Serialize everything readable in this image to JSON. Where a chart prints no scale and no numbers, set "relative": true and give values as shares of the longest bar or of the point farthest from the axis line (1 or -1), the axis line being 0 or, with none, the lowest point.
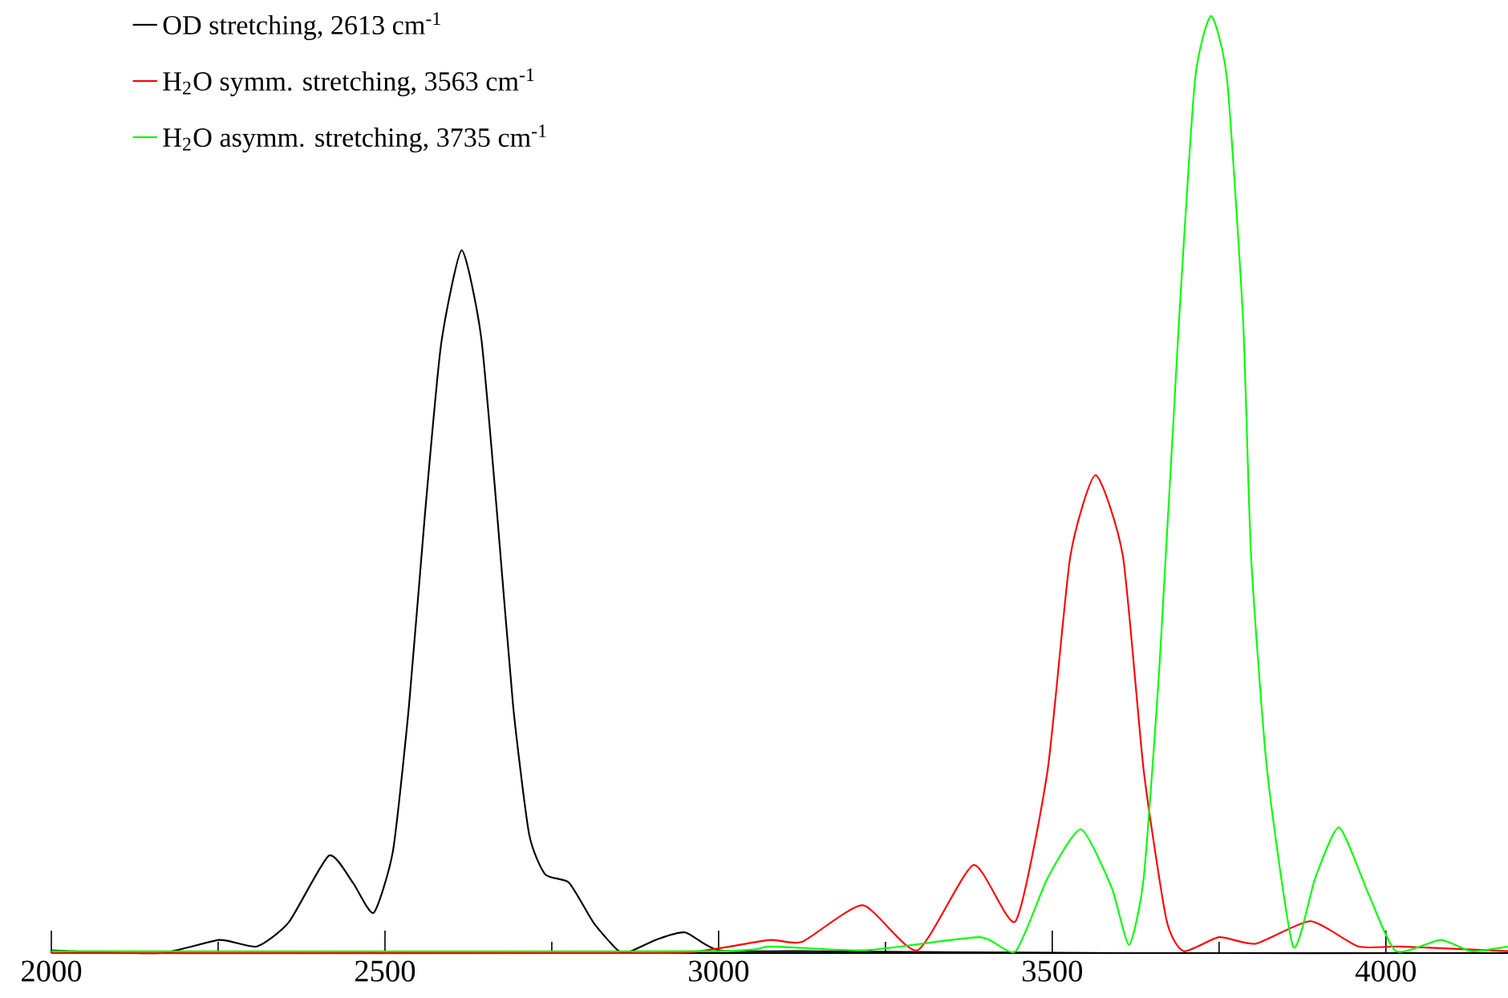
{
  "chart_data": {
    "type": "line",
    "relative": true,
    "legend": "top left",
    "xlim": [
      2000,
      4183
    ],
    "xticks": [
      2000,
      2500,
      3000,
      3500,
      4000,
      {
        "value": 2250,
        "label": null
      },
      {
        "value": 2750,
        "label": null
      },
      {
        "value": 3250,
        "label": null
      },
      {
        "value": 3750,
        "label": null
      }
    ],
    "series": [
      {
        "name": "OD stretching, 2613 cm$^{-1}$",
        "color": "#000000",
        "x": [
          2000,
          2163,
          2252,
          2308,
          2356,
          2416,
          2452,
          2483,
          2512,
          2536,
          2560,
          2584,
          2615,
          2644,
          2668,
          2692,
          2716,
          2740,
          2776,
          2813,
          2849,
          2868,
          2909,
          2950,
          3000,
          3125,
          3606,
          4183
        ],
        "values": [
          0.003,
          0,
          0.014,
          0.007,
          0.033,
          0.104,
          0.075,
          0.043,
          0.109,
          0.264,
          0.469,
          0.649,
          0.75,
          0.658,
          0.469,
          0.264,
          0.127,
          0.084,
          0.075,
          0.032,
          0.003,
          0.002,
          0.015,
          0.022,
          0.003,
          0.002,
          0,
          0
        ]
      },
      {
        "name": "H$_{2}$O symm. stretching, 3563 cm$^{-1}$",
        "color": "#ff0000",
        "x": [
          2000,
          2885,
          2981,
          3077,
          3125,
          3216,
          3298,
          3382,
          3445,
          3493,
          3527,
          3565,
          3606,
          3637,
          3671,
          3697,
          3750,
          3805,
          3887,
          3959,
          4022,
          4183
        ],
        "values": [
          0,
          0,
          0.003,
          0.014,
          0.012,
          0.051,
          0.003,
          0.094,
          0.034,
          0.195,
          0.423,
          0.51,
          0.423,
          0.195,
          0.036,
          0.002,
          0.017,
          0.01,
          0.034,
          0.007,
          0.007,
          0.002
        ]
      },
      {
        "name": "H$_{2}$O asymm. stretching, 3735 cm$^{-1}$",
        "color": "#00ff00",
        "x": [
          2000,
          2981,
          3077,
          3221,
          3390,
          3445,
          3493,
          3543,
          3589,
          3615,
          3637,
          3661,
          3690,
          3714,
          3738,
          3762,
          3786,
          3798,
          3822,
          3861,
          3894,
          3930,
          3974,
          4015,
          4082,
          4128,
          4183
        ],
        "values": [
          0.002,
          0.002,
          0.007,
          0.003,
          0.017,
          0.002,
          0.08,
          0.132,
          0.07,
          0.009,
          0.08,
          0.31,
          0.675,
          0.932,
          1,
          0.932,
          0.675,
          0.423,
          0.195,
          0.007,
          0.08,
          0.134,
          0.063,
          0.002,
          0.014,
          0.002,
          0.007
        ]
      }
    ]
  }
}
